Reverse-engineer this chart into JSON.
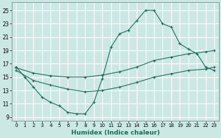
{
  "xlabel": "Humidex (Indice chaleur)",
  "xlim": [
    -0.5,
    23.5
  ],
  "ylim": [
    8.5,
    26.2
  ],
  "xticks": [
    0,
    1,
    2,
    3,
    4,
    5,
    6,
    7,
    8,
    9,
    10,
    11,
    12,
    13,
    14,
    15,
    16,
    17,
    18,
    19,
    20,
    21,
    22,
    23
  ],
  "yticks": [
    9,
    11,
    13,
    15,
    17,
    19,
    21,
    23,
    25
  ],
  "bg_color": "#cce8e5",
  "grid_color": "#ffffff",
  "line_color": "#1a6b5a",
  "curve_x": [
    0,
    1,
    2,
    3,
    4,
    5,
    6,
    7,
    8,
    9,
    10,
    11,
    12,
    13,
    14,
    15,
    16,
    17,
    18,
    19,
    20,
    21,
    22,
    23
  ],
  "curve_y": [
    16.5,
    15.0,
    13.5,
    12.0,
    11.2,
    10.7,
    9.7,
    9.5,
    9.5,
    11.2,
    14.8,
    19.5,
    21.5,
    22.0,
    23.5,
    25.0,
    25.0,
    23.0,
    22.5,
    20.0,
    19.2,
    18.5,
    16.5,
    16.0
  ],
  "mid_x": [
    0,
    2,
    4,
    6,
    8,
    10,
    12,
    14,
    16,
    18,
    20,
    22,
    23
  ],
  "mid_y": [
    16.4,
    15.6,
    15.2,
    15.0,
    15.0,
    15.3,
    15.8,
    16.5,
    17.5,
    18.0,
    18.5,
    18.8,
    19.0
  ],
  "low_x": [
    0,
    2,
    4,
    6,
    8,
    10,
    12,
    14,
    16,
    18,
    20,
    22,
    23
  ],
  "low_y": [
    16.0,
    14.5,
    13.8,
    13.2,
    12.8,
    13.0,
    13.5,
    14.2,
    15.0,
    15.5,
    16.0,
    16.2,
    16.5
  ]
}
